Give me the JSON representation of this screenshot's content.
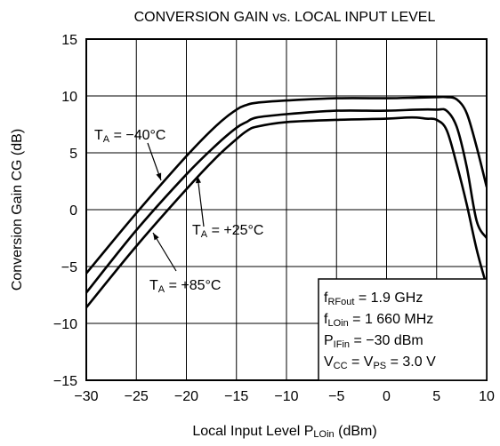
{
  "chart_data": {
    "type": "line",
    "title": "CONVERSION GAIN vs. LOCAL INPUT LEVEL",
    "xlabel": {
      "main": "Local Input Level  P",
      "sub": "LOin",
      "unit": "  (dBm)"
    },
    "ylabel": "Conversion Gain  CG  (dB)",
    "xlim": [
      -30,
      10
    ],
    "ylim": [
      -15,
      15
    ],
    "xticks": [
      -30,
      -25,
      -20,
      -15,
      -10,
      -5,
      0,
      5,
      10
    ],
    "yticks": [
      -15,
      -10,
      -5,
      0,
      5,
      10,
      15
    ],
    "xtick_labels": [
      "−30",
      "−25",
      "−20",
      "−15",
      "−10",
      "−5",
      "0",
      "5",
      "10"
    ],
    "ytick_labels": [
      "−15",
      "−10",
      "−5",
      "0",
      "5",
      "10",
      "15"
    ],
    "grid": true,
    "series": [
      {
        "name": "TA = −40°C",
        "x": [
          -30,
          -25,
          -20,
          -17,
          -15,
          -14,
          -13,
          -10,
          -5,
          0,
          3,
          5,
          6,
          7,
          8,
          9,
          10
        ],
        "y": [
          -5.6,
          -0.3,
          4.7,
          7.4,
          8.8,
          9.2,
          9.4,
          9.6,
          9.8,
          9.8,
          9.85,
          9.9,
          9.9,
          9.7,
          8.5,
          5.5,
          2.0
        ]
      },
      {
        "name": "TA = +25°C",
        "x": [
          -30,
          -25,
          -20,
          -17,
          -15,
          -14,
          -13,
          -10,
          -5,
          0,
          3,
          5,
          6,
          7,
          8,
          9,
          10
        ],
        "y": [
          -7.3,
          -1.8,
          3.1,
          5.7,
          7.2,
          7.7,
          8.1,
          8.4,
          8.7,
          8.7,
          8.8,
          8.8,
          8.7,
          7.3,
          3.8,
          -1.0,
          -2.5
        ]
      },
      {
        "name": "TA = +85°C",
        "x": [
          -30,
          -25,
          -20,
          -17,
          -15,
          -14,
          -13,
          -10,
          -5,
          0,
          2,
          3,
          4,
          5,
          6,
          7,
          8,
          9,
          10
        ],
        "y": [
          -8.6,
          -3.2,
          1.8,
          4.6,
          6.2,
          6.9,
          7.3,
          7.7,
          7.9,
          8.0,
          8.1,
          8.1,
          8.0,
          7.9,
          7.0,
          4.0,
          0.5,
          -3.5,
          -6.7
        ]
      }
    ],
    "annotations": [
      {
        "main": "T",
        "sub": "A",
        "rest": " = −40°C"
      },
      {
        "main": "T",
        "sub": "A",
        "rest": " = +25°C"
      },
      {
        "main": "T",
        "sub": "A",
        "rest": " = +85°C"
      }
    ],
    "conditions": [
      [
        {
          "t": "f"
        },
        {
          "t": "RFout",
          "sub": true
        },
        {
          "t": " = 1.9 GHz"
        }
      ],
      [
        {
          "t": "f"
        },
        {
          "t": "LOin",
          "sub": true
        },
        {
          "t": " = 1 660 MHz"
        }
      ],
      [
        {
          "t": "P"
        },
        {
          "t": "IFin",
          "sub": true
        },
        {
          "t": " = −30 dBm"
        }
      ],
      [
        {
          "t": "V"
        },
        {
          "t": "CC",
          "sub": true
        },
        {
          "t": " = V"
        },
        {
          "t": "PS",
          "sub": true
        },
        {
          "t": " = 3.0 V"
        }
      ]
    ]
  }
}
